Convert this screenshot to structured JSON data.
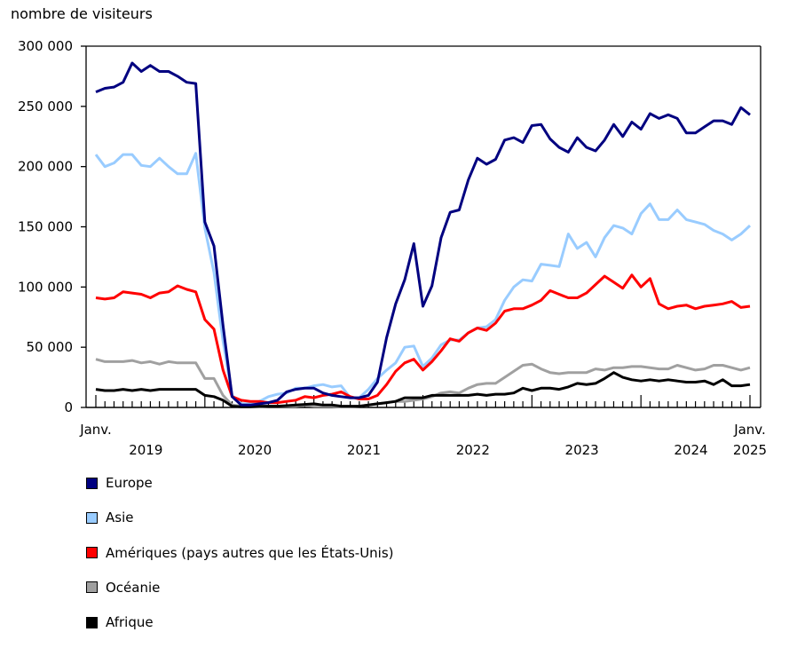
{
  "chart_data": {
    "type": "line",
    "ylabel": "nombre de visiteurs",
    "ylim": [
      0,
      300000
    ],
    "yticks": [
      0,
      50000,
      100000,
      150000,
      200000,
      250000,
      300000
    ],
    "ytick_labels": [
      "0",
      "50 000",
      "100 000",
      "150 000",
      "200 000",
      "250 000",
      "300 000"
    ],
    "x_start": "2019-01",
    "x_end": "2025-01",
    "x_frequency": "monthly",
    "x_labels": {
      "start_month": "Janv.",
      "end_month": "Janv.",
      "years": [
        "2019",
        "2020",
        "2021",
        "2022",
        "2023",
        "2024",
        "2025"
      ]
    },
    "grid": false,
    "legend_position": "bottom",
    "series": [
      {
        "name": "Europe",
        "color": "#000080",
        "values": [
          262000,
          265000,
          266000,
          270000,
          286000,
          279000,
          284000,
          279000,
          279000,
          275000,
          270000,
          269000,
          154000,
          134000,
          68000,
          9000,
          2000,
          2000,
          3000,
          4000,
          6000,
          13000,
          15000,
          16000,
          16000,
          12000,
          10000,
          9000,
          8000,
          8000,
          10000,
          21000,
          58000,
          86000,
          106000,
          136000,
          84000,
          101000,
          141000,
          162000,
          164000,
          189000,
          207000,
          202000,
          206000,
          222000,
          224000,
          220000,
          234000,
          235000,
          223000,
          216000,
          212000,
          224000,
          216000,
          213000,
          222000,
          235000,
          225000,
          237000,
          231000,
          244000,
          240000,
          243000,
          240000,
          228000,
          228000,
          233000,
          238000,
          238000,
          235000,
          249000,
          243000
        ]
      },
      {
        "name": "Asie",
        "color": "#99ccff",
        "values": [
          210000,
          200000,
          203000,
          210000,
          210000,
          201000,
          200000,
          207000,
          200000,
          194000,
          194000,
          211000,
          149000,
          112000,
          55000,
          10000,
          3000,
          3000,
          5000,
          9000,
          11000,
          12000,
          16000,
          16000,
          18000,
          19000,
          17000,
          18000,
          8000,
          8000,
          15000,
          24000,
          31000,
          37000,
          50000,
          51000,
          34000,
          41000,
          52000,
          56000,
          56000,
          62000,
          66000,
          67000,
          73000,
          89000,
          100000,
          106000,
          105000,
          119000,
          118000,
          117000,
          144000,
          132000,
          137000,
          125000,
          141000,
          151000,
          149000,
          144000,
          161000,
          169000,
          156000,
          156000,
          164000,
          156000,
          154000,
          152000,
          147000,
          144000,
          139000,
          144000,
          151000
        ]
      },
      {
        "name": "Amériques (pays autres que les États-Unis)",
        "color": "#ff0000",
        "values": [
          91000,
          90000,
          91000,
          96000,
          95000,
          94000,
          91000,
          95000,
          96000,
          101000,
          98000,
          96000,
          73000,
          65000,
          31000,
          9000,
          6000,
          5000,
          5000,
          4000,
          4000,
          5000,
          6000,
          9000,
          8000,
          10000,
          11000,
          13000,
          9000,
          7000,
          7000,
          10000,
          19000,
          30000,
          37000,
          40000,
          31000,
          38000,
          47000,
          57000,
          55000,
          62000,
          66000,
          64000,
          70000,
          80000,
          82000,
          82000,
          85000,
          89000,
          97000,
          94000,
          91000,
          91000,
          95000,
          102000,
          109000,
          104000,
          99000,
          110000,
          100000,
          107000,
          86000,
          82000,
          84000,
          85000,
          82000,
          84000,
          85000,
          86000,
          88000,
          83000,
          84000
        ]
      },
      {
        "name": "Océanie",
        "color": "#a0a0a0",
        "values": [
          40000,
          38000,
          38000,
          38000,
          39000,
          37000,
          38000,
          36000,
          38000,
          37000,
          37000,
          37000,
          24000,
          24000,
          10000,
          2000,
          1000,
          500,
          500,
          1000,
          1000,
          1000,
          1000,
          2000,
          1000,
          1000,
          1000,
          500,
          500,
          1000,
          2000,
          3000,
          4000,
          5000,
          5000,
          6000,
          7000,
          9000,
          12000,
          13000,
          12000,
          16000,
          19000,
          20000,
          20000,
          25000,
          30000,
          35000,
          36000,
          32000,
          29000,
          28000,
          29000,
          29000,
          29000,
          32000,
          31000,
          33000,
          33000,
          34000,
          34000,
          33000,
          32000,
          32000,
          35000,
          33000,
          31000,
          32000,
          35000,
          35000,
          33000,
          31000,
          33000
        ]
      },
      {
        "name": "Afrique",
        "color": "#000000",
        "values": [
          15000,
          14000,
          14000,
          15000,
          14000,
          15000,
          14000,
          15000,
          15000,
          15000,
          15000,
          15000,
          10000,
          9000,
          6000,
          1000,
          500,
          500,
          1000,
          1000,
          1000,
          1500,
          2000,
          2500,
          3000,
          2000,
          2000,
          1000,
          1000,
          1000,
          2000,
          3000,
          4000,
          5000,
          8000,
          8000,
          8000,
          10000,
          10000,
          10000,
          10000,
          10000,
          11000,
          10000,
          11000,
          11000,
          12000,
          16000,
          14000,
          16000,
          16000,
          15000,
          17000,
          20000,
          19000,
          20000,
          24000,
          29000,
          25000,
          23000,
          22000,
          23000,
          22000,
          23000,
          22000,
          21000,
          21000,
          22000,
          19000,
          23000,
          18000,
          18000,
          19000
        ]
      }
    ]
  }
}
